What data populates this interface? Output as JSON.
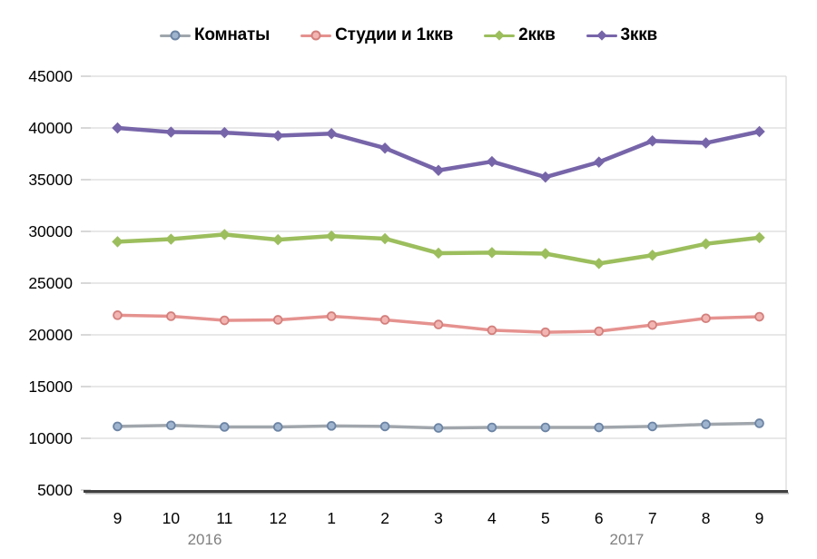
{
  "chart_data": {
    "type": "line",
    "title": "",
    "xlabel": "",
    "ylabel": "",
    "ylim": [
      5000,
      45000
    ],
    "y_ticks": [
      "45000",
      "40000",
      "35000",
      "30000",
      "25000",
      "20000",
      "15000",
      "10000",
      "5000"
    ],
    "y_tick_values": [
      45000,
      40000,
      35000,
      30000,
      25000,
      20000,
      15000,
      10000,
      5000
    ],
    "grid": "horizontal",
    "legend_position": "top",
    "categories": [
      "9",
      "10",
      "11",
      "12",
      "1",
      "2",
      "3",
      "4",
      "5",
      "6",
      "7",
      "8",
      "9"
    ],
    "year_labels": [
      {
        "label": "2016",
        "cat_index": 1.63
      },
      {
        "label": "2017",
        "cat_index": 9.52
      }
    ],
    "series": [
      {
        "name": "Комнаты",
        "color": "#A0A6AC",
        "marker": "circle",
        "marker_fill": "#9FB4CE",
        "marker_stroke": "#6C84A4",
        "line_width": 3.5,
        "values": [
          11150,
          11250,
          11100,
          11100,
          11200,
          11150,
          11000,
          11050,
          11050,
          11050,
          11150,
          11350,
          11450
        ]
      },
      {
        "name": "Студии и 1ккв",
        "color": "#E5928F",
        "marker": "circle",
        "marker_fill": "#F2B5B2",
        "marker_stroke": "#D37F7C",
        "line_width": 3.5,
        "values": [
          21900,
          21800,
          21400,
          21450,
          21800,
          21450,
          21000,
          20450,
          20250,
          20350,
          20950,
          21600,
          21750
        ]
      },
      {
        "name": "2ккв",
        "color": "#9CBE5D",
        "marker": "diamond",
        "marker_fill": "#9CBE5D",
        "marker_stroke": "#9CBE5D",
        "line_width": 4.5,
        "values": [
          29000,
          29250,
          29700,
          29200,
          29550,
          29300,
          27900,
          27950,
          27850,
          26900,
          27700,
          28800,
          29400
        ]
      },
      {
        "name": "3ккв",
        "color": "#7765A9",
        "marker": "diamond",
        "marker_fill": "#7765A9",
        "marker_stroke": "#7765A9",
        "line_width": 4.5,
        "values": [
          40000,
          39600,
          39550,
          39250,
          39450,
          38050,
          35900,
          36750,
          35250,
          36700,
          38750,
          38550,
          39650
        ]
      }
    ],
    "colors": {
      "gridline": "#D9D9D9",
      "axis_line": "#404040",
      "axis_shadow": "#AFAFAF",
      "tick": "#BFBFBF",
      "axis_text": "#000000",
      "year_text": "#7F7F7F",
      "plot_border_right": "#D9D9D9"
    }
  }
}
